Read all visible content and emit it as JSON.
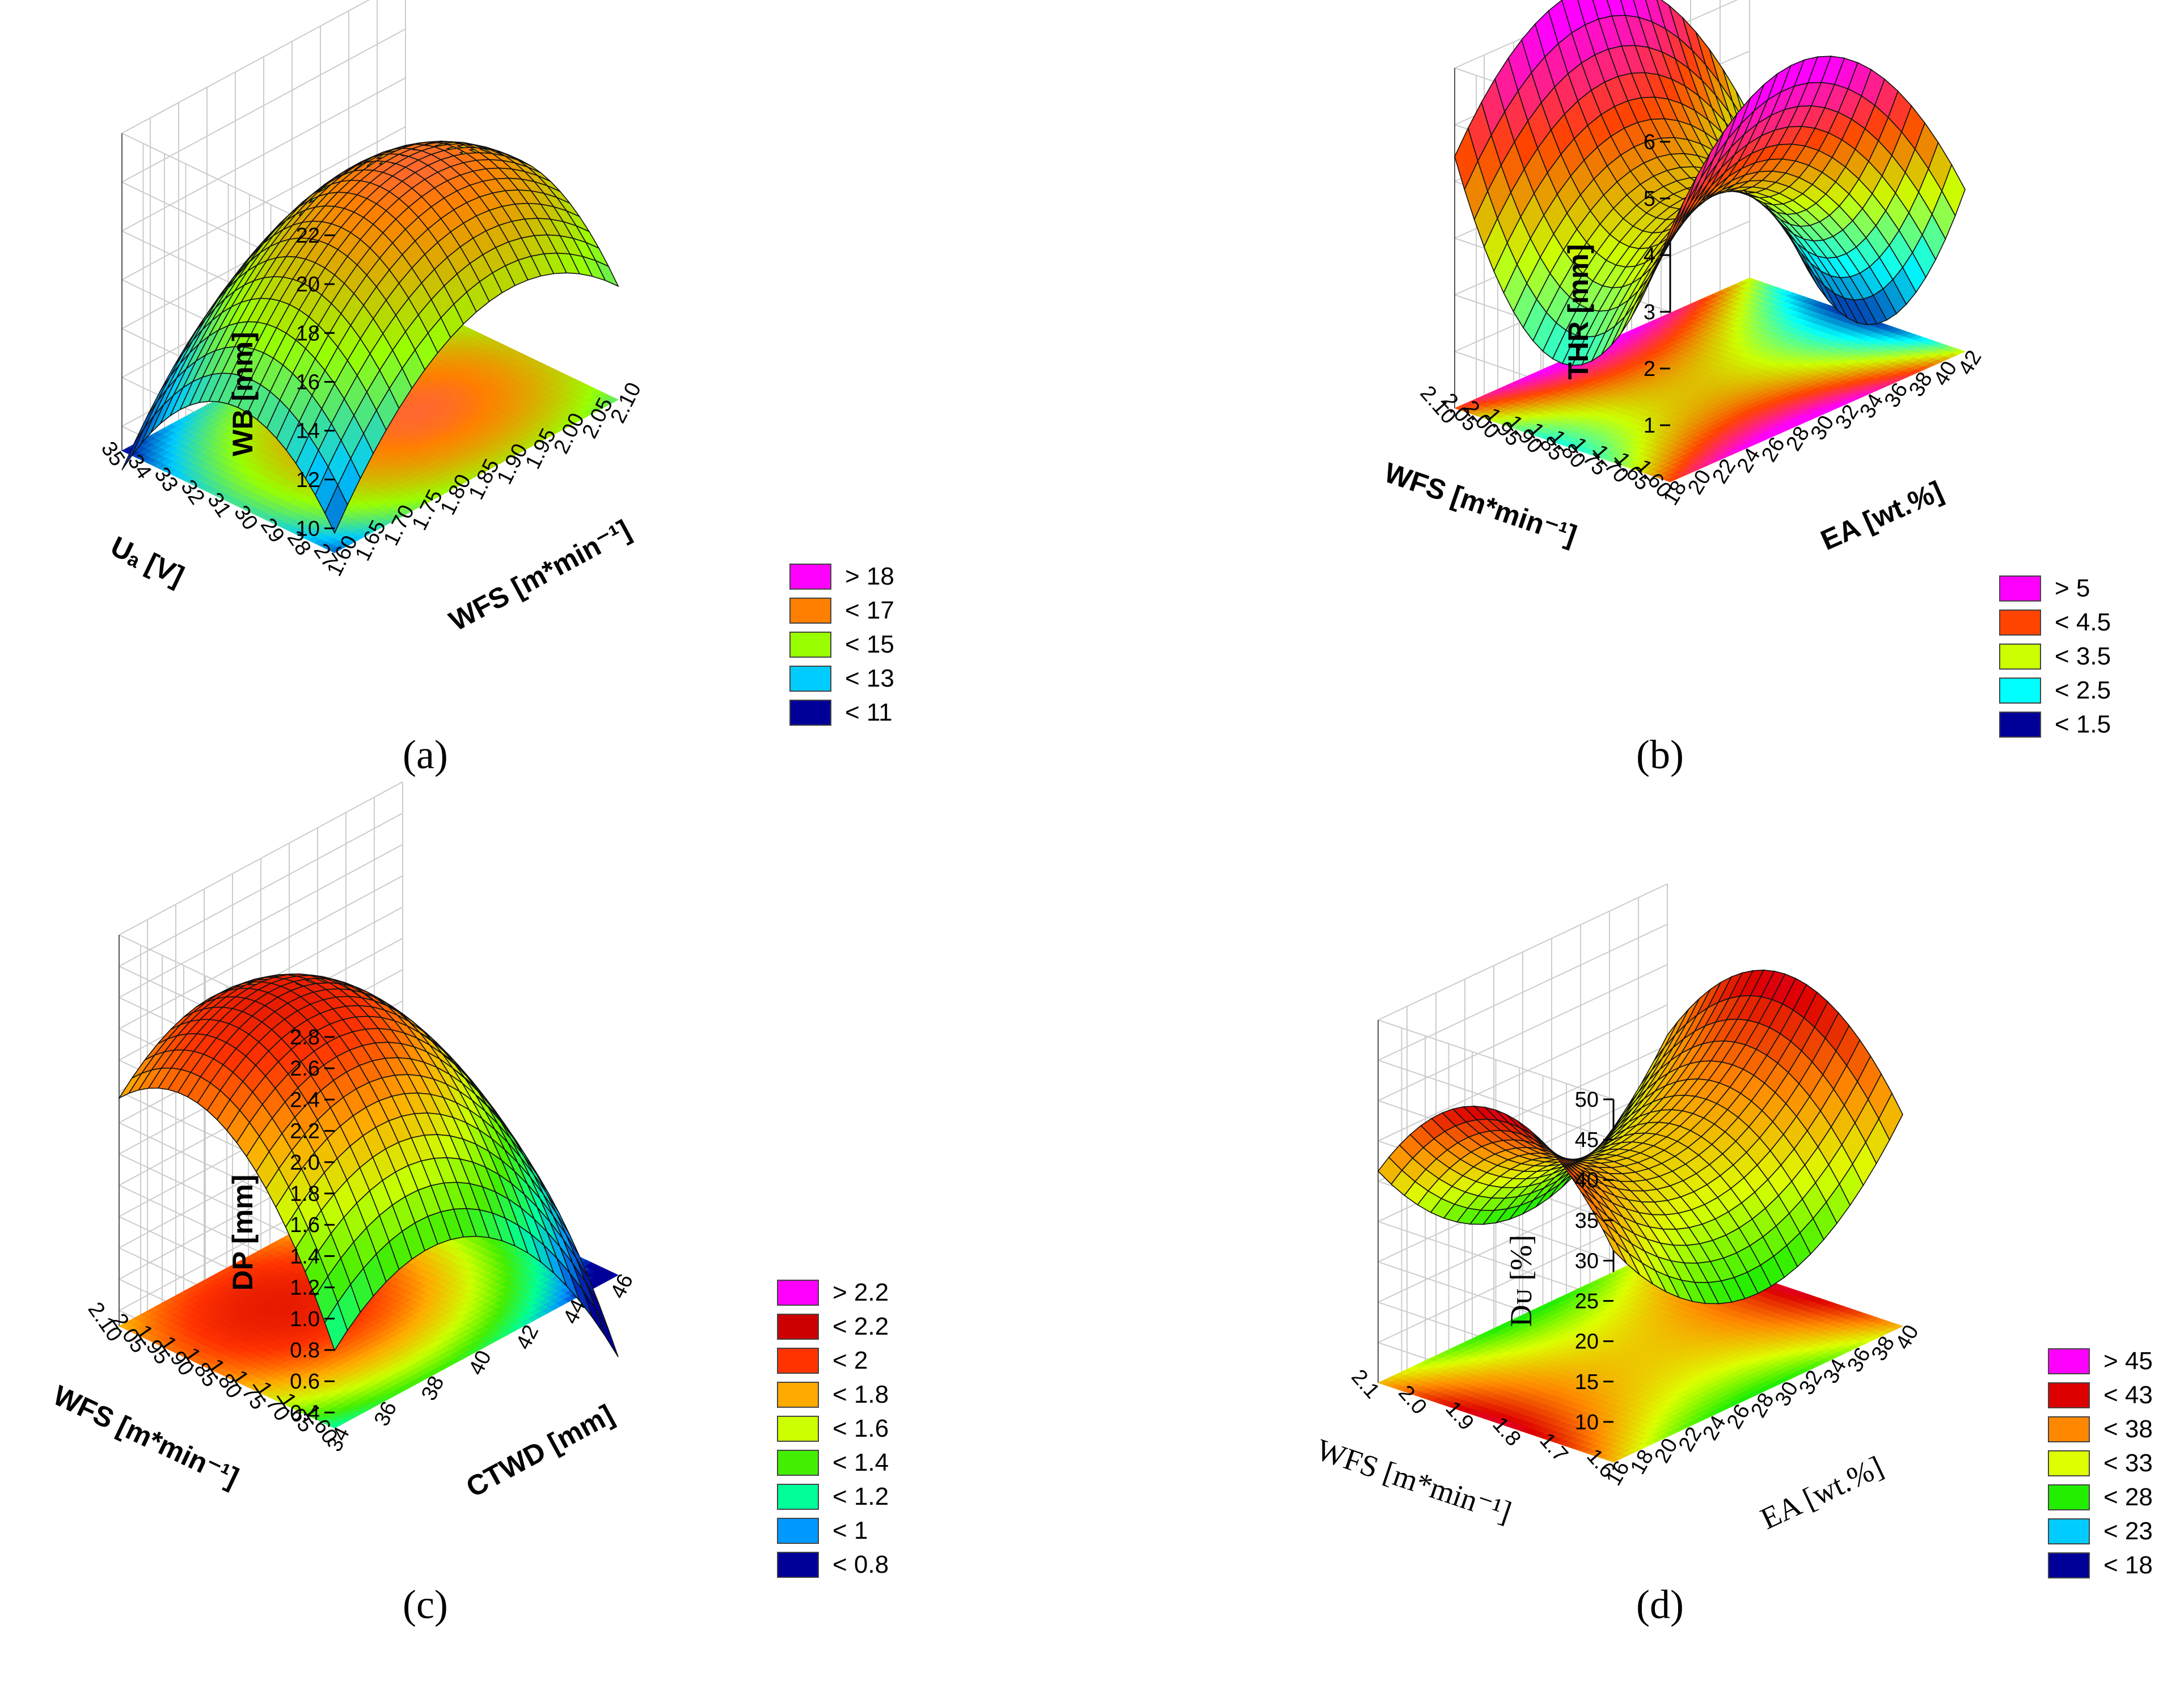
{
  "chart_data": [
    {
      "panel": "(a)",
      "type": "surface3d",
      "x": {
        "label": "WFS [m*min⁻¹]",
        "ticks": [
          "1.60",
          "1.65",
          "1.70",
          "1.75",
          "1.80",
          "1.85",
          "1.90",
          "1.95",
          "2.00",
          "2.05",
          "2.10"
        ],
        "range": [
          1.6,
          2.1
        ]
      },
      "y": {
        "label": "Uₐ [V]",
        "ticks": [
          "27",
          "28",
          "29",
          "30",
          "31",
          "32",
          "33",
          "34",
          "35"
        ],
        "range": [
          27,
          35
        ]
      },
      "z": {
        "label": "WB [mm]",
        "ticks": [
          "10",
          "12",
          "14",
          "16",
          "18",
          "20",
          "22"
        ],
        "range": [
          9,
          22
        ]
      },
      "peak": {
        "x": 1.9,
        "y": 30.5,
        "z": 19.0
      },
      "legend": [
        {
          "label": "> 18",
          "color": "#ff00ff"
        },
        {
          "label": "< 17",
          "color": "#ff7f00"
        },
        {
          "label": "< 15",
          "color": "#99ff00"
        },
        {
          "label": "< 13",
          "color": "#00ccff"
        },
        {
          "label": "< 11",
          "color": "#000099"
        }
      ]
    },
    {
      "panel": "(b)",
      "type": "surface3d",
      "x": {
        "label": "EA [wt.%]",
        "ticks": [
          "18",
          "20",
          "22",
          "24",
          "26",
          "28",
          "30",
          "32",
          "34",
          "36",
          "38",
          "40",
          "42"
        ],
        "range": [
          18,
          42
        ]
      },
      "y": {
        "label": "WFS [m*min⁻¹]",
        "ticks": [
          "1.60",
          "1.65",
          "1.70",
          "1.75",
          "1.80",
          "1.85",
          "1.90",
          "1.95",
          "2.00",
          "2.05",
          "2.10"
        ],
        "range": [
          1.6,
          2.1
        ]
      },
      "z": {
        "label": "THR [mm]",
        "ticks": [
          "1",
          "2",
          "3",
          "4",
          "5",
          "6"
        ],
        "range": [
          0,
          6
        ]
      },
      "shape": "saddle",
      "legend": [
        {
          "label": "> 5",
          "color": "#ff00ff"
        },
        {
          "label": "< 4.5",
          "color": "#ff4400"
        },
        {
          "label": "< 3.5",
          "color": "#ccff00"
        },
        {
          "label": "< 2.5",
          "color": "#00ffff"
        },
        {
          "label": "< 1.5",
          "color": "#000099"
        }
      ]
    },
    {
      "panel": "(c)",
      "type": "surface3d",
      "x": {
        "label": "CTWD [mm]",
        "ticks": [
          "34",
          "36",
          "38",
          "40",
          "42",
          "44",
          "46"
        ],
        "range": [
          34,
          46
        ]
      },
      "y": {
        "label": "WFS [m*min⁻¹]",
        "ticks": [
          "1.60",
          "1.65",
          "1.70",
          "1.75",
          "1.80",
          "1.85",
          "1.90",
          "1.95",
          "2.05",
          "2.10"
        ],
        "range": [
          1.6,
          2.1
        ]
      },
      "z": {
        "label": "DP [mm]",
        "ticks": [
          "0.4",
          "0.6",
          "0.8",
          "1.0",
          "1.2",
          "1.4",
          "1.6",
          "1.8",
          "2.0",
          "2.2",
          "2.4",
          "2.6",
          "2.8"
        ],
        "range": [
          0.3,
          2.8
        ]
      },
      "peak": {
        "x": 38,
        "y": 1.95,
        "z": 2.3
      },
      "legend": [
        {
          "label": "> 2.2",
          "color": "#ff00ff"
        },
        {
          "label": "< 2.2",
          "color": "#cc0000"
        },
        {
          "label": "< 2",
          "color": "#ff3300"
        },
        {
          "label": "< 1.8",
          "color": "#ffaa00"
        },
        {
          "label": "< 1.6",
          "color": "#ccff00"
        },
        {
          "label": "< 1.4",
          "color": "#44ee00"
        },
        {
          "label": "< 1.2",
          "color": "#00ff99"
        },
        {
          "label": "< 1",
          "color": "#0099ff"
        },
        {
          "label": "< 0.8",
          "color": "#000099"
        }
      ]
    },
    {
      "panel": "(d)",
      "type": "surface3d",
      "x": {
        "label": "EA [wt.%]",
        "ticks": [
          "16",
          "18",
          "20",
          "22",
          "24",
          "26",
          "28",
          "30",
          "32",
          "34",
          "36",
          "38",
          "40"
        ],
        "range": [
          16,
          40
        ]
      },
      "y": {
        "label": "WFS [m*min⁻¹]",
        "ticks": [
          "1.6",
          "1.7",
          "1.8",
          "1.9",
          "2.0",
          "2.1"
        ],
        "range": [
          1.6,
          2.1
        ]
      },
      "z": {
        "label": "Dᴜ [%]",
        "ticks": [
          "10",
          "15",
          "20",
          "25",
          "30",
          "35",
          "40",
          "45",
          "50"
        ],
        "range": [
          5,
          50
        ]
      },
      "shape": "saddle",
      "legend": [
        {
          "label": "> 45",
          "color": "#ff00ff"
        },
        {
          "label": "< 43",
          "color": "#dd0000"
        },
        {
          "label": "< 38",
          "color": "#ff8800"
        },
        {
          "label": "< 33",
          "color": "#ddff00"
        },
        {
          "label": "< 28",
          "color": "#22ee00"
        },
        {
          "label": "< 23",
          "color": "#00ccff"
        },
        {
          "label": "< 18",
          "color": "#000099"
        }
      ]
    }
  ]
}
